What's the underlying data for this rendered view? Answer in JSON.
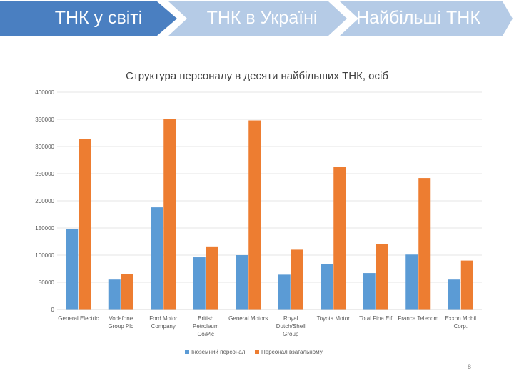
{
  "nav": {
    "tabs": [
      {
        "label": "ТНК у світі",
        "active": true
      },
      {
        "label": "ТНК в Україні",
        "active": false
      },
      {
        "label": "Найбільші ТНК",
        "active": false
      }
    ],
    "active_color": "#4a7fc1",
    "inactive_color": "#b5cbe6"
  },
  "page_number": "8",
  "chart_data": {
    "type": "bar",
    "title": "Структура персоналу в десяти найбільших ТНК, осіб",
    "categories": [
      [
        "General Electric"
      ],
      [
        "Vodafone",
        "Group Plc"
      ],
      [
        "Ford Motor",
        "Company"
      ],
      [
        "British",
        "Petroleum",
        "Co/Plc"
      ],
      [
        "General Motors"
      ],
      [
        "Royal",
        "Dutch/Shell",
        "Group"
      ],
      [
        "Toyota Motor"
      ],
      [
        "Total Fina Elf"
      ],
      [
        "France Telecom"
      ],
      [
        "Exxon Mobil",
        "Corp."
      ]
    ],
    "series": [
      {
        "name": "Іноземний персонал",
        "color": "#5b9bd5",
        "values": [
          148000,
          55000,
          188000,
          96000,
          100000,
          64000,
          84000,
          67000,
          101000,
          55000
        ]
      },
      {
        "name": "Персонал взагальному",
        "color": "#ed7d31",
        "values": [
          314000,
          65000,
          350000,
          116000,
          348000,
          110000,
          263000,
          120000,
          242000,
          90000
        ]
      }
    ],
    "ylim": [
      0,
      400000
    ],
    "yticks": [
      0,
      50000,
      100000,
      150000,
      200000,
      250000,
      300000,
      350000,
      400000
    ],
    "grid": true,
    "legend": "bottom"
  }
}
